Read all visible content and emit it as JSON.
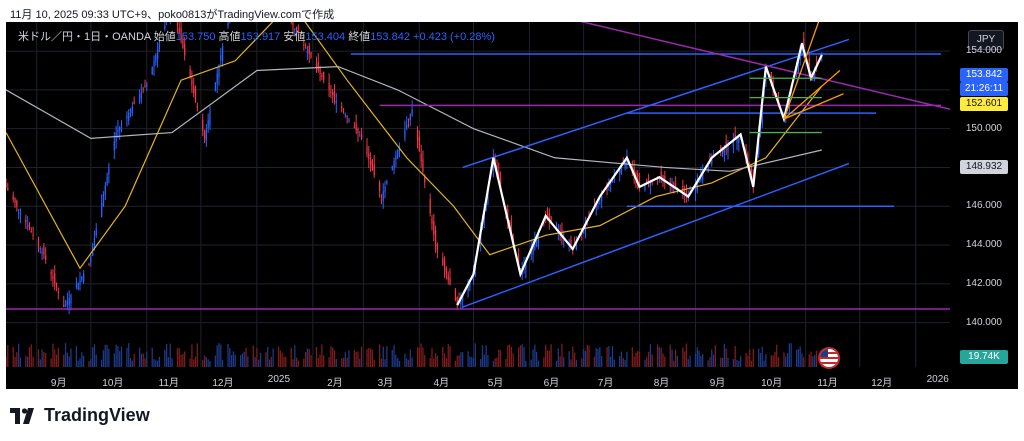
{
  "header": {
    "caption": "11月 10, 2025 09:33 UTC+9、poko0813がTradingView.comで作成"
  },
  "ticker": {
    "symbol": "米ドル／円・1日・OANDA",
    "open_label": "始値",
    "open_value": "153.750",
    "high_label": "高値",
    "high_value": "153.917",
    "low_label": "安値",
    "low_value": "153.404",
    "close_label": "終値",
    "close_value": "153.842",
    "change": "+0.423 (+0.28%)"
  },
  "currency": "JPY",
  "price_labels": {
    "last": "153.842",
    "countdown": "21:26:11",
    "yellow": "152.601",
    "ma_gray": "148.932",
    "volume": "19.74K"
  },
  "brand": {
    "name": "TradingView"
  },
  "colors": {
    "background": "#000000",
    "up": "#2962ff",
    "down": "#f23645",
    "ma_short": "#e6b422",
    "ma_long": "#b2b5be",
    "channel": "#2962ff",
    "horizontal": "#9c27b0",
    "zigzag": "#ffffff",
    "fan_orange": "#ff9800",
    "fan_green": "#4caf50",
    "last_label": "#2962ff",
    "yellow_label": "#ffeb3b"
  },
  "chart_data": {
    "type": "candlestick",
    "y_axis": {
      "range": [
        139.0,
        155.5
      ],
      "ticks": [
        "154.000",
        "152.000",
        "150.000",
        "148.000",
        "146.000",
        "144.000",
        "142.000",
        "140.000"
      ],
      "tick_values": [
        154,
        152,
        150,
        148,
        146,
        144,
        142,
        140
      ]
    },
    "x_axis": {
      "ticks": [
        "9月",
        "10月",
        "11月",
        "12月",
        "2025",
        "2月",
        "3月",
        "4月",
        "5月",
        "6月",
        "7月",
        "8月",
        "9月",
        "10月",
        "11月",
        "12月",
        "2026"
      ],
      "tick_dates": [
        "2024-09-01",
        "2024-10-01",
        "2024-11-01",
        "2024-12-01",
        "2025-01-01",
        "2025-02-01",
        "2025-03-01",
        "2025-04-01",
        "2025-05-01",
        "2025-06-01",
        "2025-07-01",
        "2025-08-01",
        "2025-09-01",
        "2025-10-01",
        "2025-11-01",
        "2025-12-01",
        "2026-01-01"
      ],
      "range": [
        "2024-08-15",
        "2026-01-20"
      ]
    },
    "price_path": [
      [
        "2024-08-15",
        147.0
      ],
      [
        "2024-09-05",
        143.5
      ],
      [
        "2024-09-16",
        140.8
      ],
      [
        "2024-09-30",
        143.0
      ],
      [
        "2024-10-15",
        149.8
      ],
      [
        "2024-11-01",
        152.3
      ],
      [
        "2024-11-15",
        156.5
      ],
      [
        "2024-12-03",
        149.5
      ],
      [
        "2024-12-20",
        157.6
      ],
      [
        "2025-01-10",
        158.5
      ],
      [
        "2025-01-20",
        155.5
      ],
      [
        "2025-02-10",
        152.0
      ],
      [
        "2025-02-28",
        149.5
      ],
      [
        "2025-03-11",
        146.5
      ],
      [
        "2025-03-28",
        151.0
      ],
      [
        "2025-04-10",
        144.0
      ],
      [
        "2025-04-22",
        140.9
      ],
      [
        "2025-05-01",
        142.5
      ],
      [
        "2025-05-12",
        148.5
      ],
      [
        "2025-05-27",
        142.5
      ],
      [
        "2025-06-10",
        145.5
      ],
      [
        "2025-06-25",
        143.8
      ],
      [
        "2025-07-10",
        146.5
      ],
      [
        "2025-07-25",
        148.5
      ],
      [
        "2025-08-01",
        147.0
      ],
      [
        "2025-08-12",
        147.5
      ],
      [
        "2025-08-28",
        146.5
      ],
      [
        "2025-09-10",
        148.5
      ],
      [
        "2025-09-26",
        149.7
      ],
      [
        "2025-10-03",
        147.0
      ],
      [
        "2025-10-10",
        153.2
      ],
      [
        "2025-10-20",
        150.5
      ],
      [
        "2025-10-30",
        154.4
      ],
      [
        "2025-11-04",
        152.6
      ],
      [
        "2025-11-10",
        153.8
      ]
    ],
    "moving_averages": [
      {
        "period_label": "short",
        "points": [
          [
            "2024-08-15",
            149.8
          ],
          [
            "2024-09-25",
            142.8
          ],
          [
            "2024-10-20",
            146.0
          ],
          [
            "2024-11-20",
            152.5
          ],
          [
            "2024-12-20",
            153.5
          ],
          [
            "2025-01-20",
            156.5
          ],
          [
            "2025-02-20",
            152.5
          ],
          [
            "2025-03-25",
            148.5
          ],
          [
            "2025-04-20",
            146.0
          ],
          [
            "2025-05-10",
            143.5
          ],
          [
            "2025-06-10",
            144.5
          ],
          [
            "2025-07-10",
            145.0
          ],
          [
            "2025-08-10",
            146.5
          ],
          [
            "2025-09-10",
            147.2
          ],
          [
            "2025-10-10",
            148.5
          ],
          [
            "2025-11-10",
            152.2
          ]
        ]
      },
      {
        "period_label": "long",
        "points": [
          [
            "2024-08-15",
            152.0
          ],
          [
            "2024-10-01",
            149.5
          ],
          [
            "2024-11-15",
            149.8
          ],
          [
            "2025-01-01",
            153.0
          ],
          [
            "2025-02-15",
            153.2
          ],
          [
            "2025-03-20",
            152.0
          ],
          [
            "2025-05-01",
            150.0
          ],
          [
            "2025-06-15",
            148.5
          ],
          [
            "2025-08-15",
            148.0
          ],
          [
            "2025-09-20",
            147.8
          ],
          [
            "2025-11-10",
            148.9
          ]
        ]
      }
    ],
    "volume": {
      "last": 19.74,
      "unit": "K"
    },
    "drawings": {
      "horizontal_lines": [
        {
          "from": "2025-02-22",
          "to": "2026-01-15",
          "price": 153.85,
          "color": "blue"
        },
        {
          "from": "2025-03-10",
          "to": "2026-01-15",
          "price": 151.2,
          "color": "purple"
        },
        {
          "from": "2025-07-25",
          "to": "2025-12-10",
          "price": 150.8,
          "color": "blue"
        },
        {
          "from": "2025-07-25",
          "to": "2025-12-20",
          "price": 146.0,
          "color": "blue"
        },
        {
          "from": "2024-08-15",
          "to": "2026-01-20",
          "price": 140.7,
          "color": "purple"
        }
      ],
      "channel_lines": [
        {
          "from": [
            "2025-04-25",
            148.0
          ],
          "to": [
            "2025-11-25",
            154.6
          ]
        },
        {
          "from": [
            "2025-04-25",
            140.8
          ],
          "to": [
            "2025-11-25",
            148.2
          ]
        }
      ],
      "diagonal": {
        "from": [
          "2025-01-01",
          159.5
        ],
        "to": [
          "2026-01-20",
          151.0
        ]
      }
    }
  }
}
